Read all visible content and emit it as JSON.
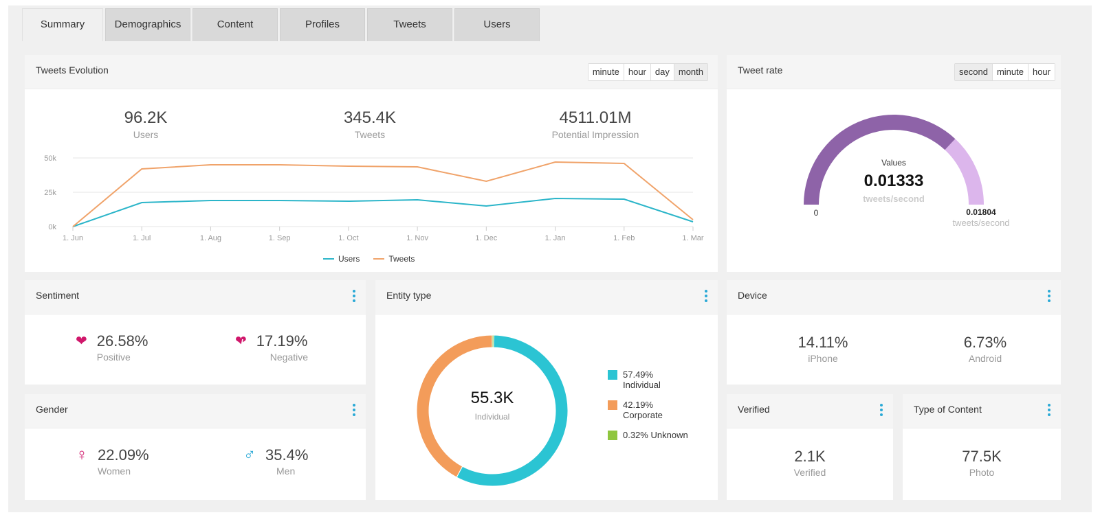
{
  "tabs": [
    "Summary",
    "Demographics",
    "Content",
    "Profiles",
    "Tweets",
    "Users"
  ],
  "tweets_evolution": {
    "title": "Tweets Evolution",
    "granularity": [
      "minute",
      "hour",
      "day",
      "month"
    ],
    "active_granularity": "month",
    "stats": [
      {
        "value": "96.2K",
        "label": "Users"
      },
      {
        "value": "345.4K",
        "label": "Tweets"
      },
      {
        "value": "4511.01M",
        "label": "Potential Impression"
      }
    ]
  },
  "tweet_rate": {
    "title": "Tweet rate",
    "units": [
      "second",
      "minute",
      "hour"
    ],
    "active_unit": "second",
    "gauge_label": "Values",
    "value": "0.01333",
    "value_unit": "tweets/second",
    "min_label": "0",
    "max_label": "0.01804",
    "max_unit": "tweets/second",
    "fraction": 0.739,
    "colors": {
      "fill": "#8e63a8",
      "track": "#dcb6ec"
    }
  },
  "sentiment": {
    "title": "Sentiment",
    "positive": {
      "value": "26.58%",
      "label": "Positive",
      "icon": "heart-icon"
    },
    "negative": {
      "value": "17.19%",
      "label": "Negative",
      "icon": "broken-heart-icon"
    },
    "color": "#d0176b"
  },
  "gender": {
    "title": "Gender",
    "women": {
      "value": "22.09%",
      "label": "Women",
      "icon": "female-icon",
      "color": "#d0176b"
    },
    "men": {
      "value": "35.4%",
      "label": "Men",
      "icon": "male-icon",
      "color": "#2aa9d6"
    }
  },
  "entity_type": {
    "title": "Entity type",
    "center_value": "55.3K",
    "center_label": "Individual",
    "legend": [
      {
        "pct": "57.49%",
        "name": "Individual",
        "color": "#2bc4d3"
      },
      {
        "pct": "42.19%",
        "name": "Corporate",
        "color": "#f39c5a"
      },
      {
        "pct": "0.32%",
        "name": "Unknown",
        "color": "#8fc63f"
      }
    ]
  },
  "device": {
    "title": "Device",
    "items": [
      {
        "value": "14.11%",
        "label": "iPhone"
      },
      {
        "value": "6.73%",
        "label": "Android"
      }
    ]
  },
  "verified": {
    "title": "Verified",
    "value": "2.1K",
    "label": "Verified"
  },
  "type_of_content": {
    "title": "Type of Content",
    "value": "77.5K",
    "label": "Photo"
  },
  "chart_data": [
    {
      "type": "line",
      "categories": [
        "1. Jun",
        "1. Jul",
        "1. Aug",
        "1. Sep",
        "1. Oct",
        "1. Nov",
        "1. Dec",
        "1. Jan",
        "1. Feb",
        "1. Mar"
      ],
      "series": [
        {
          "name": "Users",
          "color": "#2bb5c9",
          "values": [
            0,
            17500,
            19000,
            19000,
            18500,
            19500,
            15000,
            20500,
            20000,
            3500
          ]
        },
        {
          "name": "Tweets",
          "color": "#f0a36a",
          "values": [
            0,
            42000,
            45000,
            45000,
            44000,
            43500,
            33000,
            47000,
            46000,
            5000
          ]
        }
      ],
      "y_ticks": [
        "0k",
        "25k",
        "50k"
      ],
      "ylim": [
        0,
        50000
      ],
      "grid": true,
      "legend": "bottom-center"
    },
    {
      "type": "pie",
      "categories": [
        "Individual",
        "Corporate",
        "Unknown"
      ],
      "values": [
        57.49,
        42.19,
        0.32
      ],
      "colors": [
        "#2bc4d3",
        "#f39c5a",
        "#8fc63f"
      ]
    }
  ]
}
